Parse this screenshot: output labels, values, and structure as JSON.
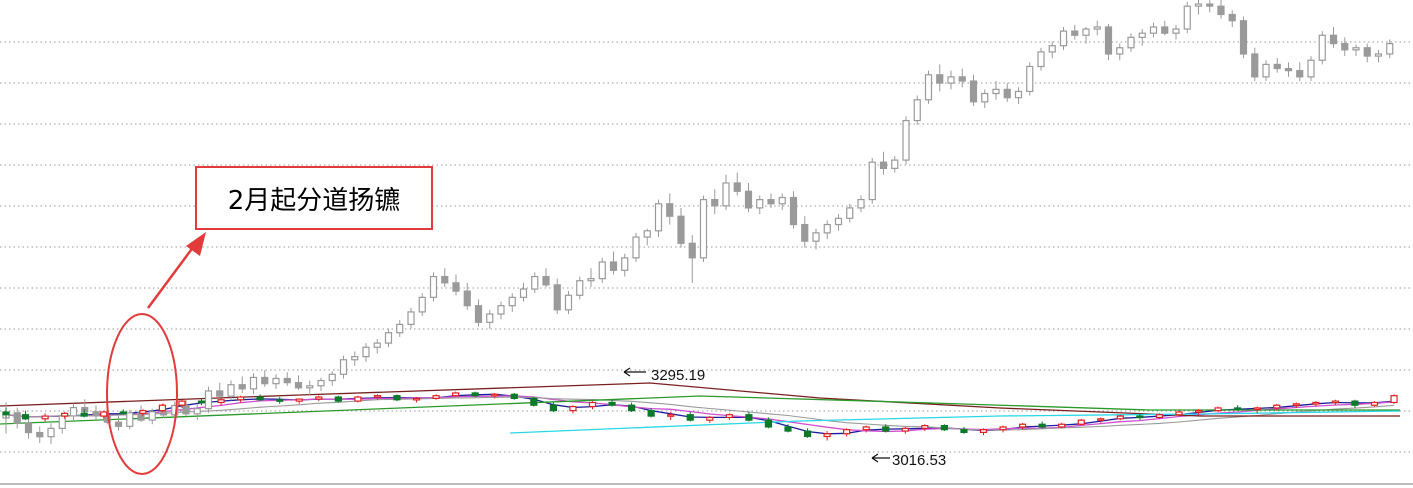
{
  "annotation": {
    "text": "2月起分道扬镳"
  },
  "chart_data": {
    "type": "candlestick",
    "grid": "dotted-horizontal",
    "colors": {
      "upper_candles": "#9a9a9a",
      "up_candle": "#e02020",
      "down_candle": "#0a7a2a",
      "ma_short": "#1c1c9c",
      "ma_mid": "#d04fd0",
      "ma_long_1": "#9a9a9a",
      "ma_long_2": "#7a1f1f",
      "ma_long_3": "#2a9a2a",
      "ma_long_4": "#29d7e6",
      "annotation": "#e23b3b"
    },
    "upper_series": [
      [
        100,
        101.5,
        98.5,
        100.5
      ],
      [
        100.5,
        101,
        99,
        99.5
      ],
      [
        99.5,
        100,
        98,
        98.6
      ],
      [
        98.6,
        99.2,
        97.6,
        98.2
      ],
      [
        98.2,
        99.5,
        97.5,
        99
      ],
      [
        99,
        100.5,
        98.5,
        100.2
      ],
      [
        100.2,
        101.4,
        99.8,
        101
      ],
      [
        101,
        101.8,
        100.4,
        100.6
      ],
      [
        100.6,
        101.2,
        99.8,
        100.2
      ],
      [
        100.2,
        101,
        99.4,
        99.6
      ],
      [
        99.6,
        100.2,
        98.8,
        99.2
      ],
      [
        99.2,
        100.8,
        98.9,
        100.5
      ],
      [
        100.5,
        101.2,
        99.6,
        99.8
      ],
      [
        99.8,
        100.9,
        99.4,
        100.6
      ],
      [
        100.6,
        101.4,
        100,
        100.3
      ],
      [
        100.3,
        101.6,
        99.9,
        101.2
      ],
      [
        101.2,
        101.8,
        100.2,
        100.4
      ],
      [
        100.4,
        101.3,
        99.8,
        100.9
      ],
      [
        100.9,
        103,
        100.5,
        102.6
      ],
      [
        102.6,
        103.4,
        101.8,
        102.1
      ],
      [
        102.1,
        103.6,
        101.7,
        103.2
      ],
      [
        103.2,
        104,
        102.4,
        102.8
      ],
      [
        102.8,
        104.3,
        102.3,
        103.9
      ],
      [
        103.9,
        104.6,
        103,
        103.3
      ],
      [
        103.3,
        104.2,
        102.8,
        103.8
      ],
      [
        103.8,
        104.4,
        103.1,
        103.4
      ],
      [
        103.4,
        104.1,
        102.7,
        102.9
      ],
      [
        102.9,
        103.6,
        102.2,
        103.1
      ],
      [
        103.1,
        103.9,
        102.6,
        103.6
      ],
      [
        103.6,
        104.5,
        103.1,
        104.2
      ],
      [
        104.2,
        106,
        103.8,
        105.6
      ],
      [
        105.6,
        106.4,
        105,
        105.9
      ],
      [
        105.9,
        107.2,
        105.4,
        106.8
      ],
      [
        106.8,
        107.6,
        106.2,
        107.2
      ],
      [
        107.2,
        108.6,
        106.8,
        108.2
      ],
      [
        108.2,
        109.4,
        107.8,
        109
      ],
      [
        109,
        110.6,
        108.6,
        110.2
      ],
      [
        110.2,
        112,
        109.8,
        111.6
      ],
      [
        111.6,
        114,
        111.2,
        113.6
      ],
      [
        113.6,
        114.4,
        112.6,
        113
      ],
      [
        113,
        113.8,
        111.8,
        112.2
      ],
      [
        112.2,
        113,
        110.4,
        110.8
      ],
      [
        110.8,
        111.4,
        108.8,
        109.2
      ],
      [
        109.2,
        110.4,
        108.6,
        110
      ],
      [
        110,
        111.2,
        109.5,
        110.8
      ],
      [
        110.8,
        112,
        110.2,
        111.6
      ],
      [
        111.6,
        113,
        111.2,
        112.4
      ],
      [
        112.4,
        114,
        112,
        113.6
      ],
      [
        113.6,
        114.4,
        112.6,
        112.8
      ],
      [
        112.8,
        113.4,
        110,
        110.4
      ],
      [
        110.4,
        112.2,
        110,
        111.8
      ],
      [
        111.8,
        113.6,
        111.4,
        113.2
      ],
      [
        113.2,
        114.4,
        112.6,
        113.4
      ],
      [
        113.4,
        115.4,
        113,
        115
      ],
      [
        115,
        116,
        113.8,
        114.2
      ],
      [
        114.2,
        115.8,
        113.6,
        115.4
      ],
      [
        115.4,
        117.8,
        115,
        117.4
      ],
      [
        117.4,
        118.2,
        116.6,
        118
      ],
      [
        118,
        121,
        117.4,
        120.6
      ],
      [
        120.6,
        121.6,
        118.6,
        119.4
      ],
      [
        119.4,
        120.2,
        116.4,
        116.8
      ],
      [
        116.8,
        117.6,
        113,
        115.4
      ],
      [
        115.4,
        121.4,
        115,
        121
      ],
      [
        121,
        122,
        119.6,
        120.4
      ],
      [
        120.4,
        123.4,
        120,
        122.6
      ],
      [
        122.6,
        123.6,
        121.4,
        121.8
      ],
      [
        121.8,
        122.6,
        119.8,
        120.2
      ],
      [
        120.2,
        121.4,
        119.6,
        121
      ],
      [
        121,
        121.6,
        120.2,
        120.6
      ],
      [
        120.6,
        121.6,
        120,
        121.2
      ],
      [
        121.2,
        121.8,
        118.2,
        118.6
      ],
      [
        118.6,
        119.4,
        116.4,
        117
      ],
      [
        117,
        118.2,
        116.2,
        117.8
      ],
      [
        117.8,
        119,
        117.2,
        118.6
      ],
      [
        118.6,
        119.6,
        118,
        119.2
      ],
      [
        119.2,
        120.6,
        118.8,
        120.2
      ],
      [
        120.2,
        121.4,
        119.8,
        121
      ],
      [
        121,
        125,
        120.6,
        124.6
      ],
      [
        124.6,
        125.6,
        123.4,
        124
      ],
      [
        124,
        125.2,
        123.6,
        124.8
      ],
      [
        124.8,
        129,
        124.4,
        128.6
      ],
      [
        128.6,
        131,
        128.2,
        130.6
      ],
      [
        130.6,
        133.4,
        130.2,
        133
      ],
      [
        133,
        134,
        131.4,
        132.2
      ],
      [
        132.2,
        133.4,
        131.6,
        132.8
      ],
      [
        132.8,
        133.6,
        131.8,
        132.4
      ],
      [
        132.4,
        133,
        130,
        130.4
      ],
      [
        130.4,
        131.6,
        129.8,
        131.2
      ],
      [
        131.2,
        132.4,
        130.6,
        131.6
      ],
      [
        131.6,
        132.2,
        130.4,
        130.8
      ],
      [
        130.8,
        131.8,
        130.2,
        131.4
      ],
      [
        131.4,
        134.2,
        131,
        133.8
      ],
      [
        133.8,
        135.6,
        133.4,
        135.2
      ],
      [
        135.2,
        136.2,
        134.6,
        135.8
      ],
      [
        135.8,
        137.6,
        135.4,
        137.2
      ],
      [
        137.2,
        137.8,
        136.4,
        136.8
      ],
      [
        136.8,
        137.6,
        136,
        137.4
      ],
      [
        137.4,
        138.2,
        136.8,
        137.6
      ],
      [
        137.6,
        137.9,
        134.4,
        135
      ],
      [
        135,
        136,
        134.4,
        135.6
      ],
      [
        135.6,
        137,
        135.2,
        136.6
      ],
      [
        136.6,
        137.4,
        135.8,
        137
      ],
      [
        137,
        138,
        136.6,
        137.6
      ],
      [
        137.6,
        138.2,
        136.8,
        137
      ],
      [
        137,
        137.8,
        136.4,
        137.4
      ],
      [
        137.4,
        140,
        137,
        139.6
      ],
      [
        139.6,
        140.2,
        138.8,
        139.8
      ],
      [
        139.8,
        140.2,
        139,
        139.6
      ],
      [
        139.6,
        140.2,
        138.4,
        138.8
      ],
      [
        138.8,
        139.2,
        137.6,
        138.2
      ],
      [
        138.2,
        138.6,
        134.6,
        135
      ],
      [
        135,
        135.6,
        132.4,
        132.8
      ],
      [
        132.8,
        134.4,
        132.4,
        134
      ],
      [
        134,
        134.6,
        133.2,
        133.6
      ],
      [
        133.6,
        134.2,
        132.8,
        133.4
      ],
      [
        133.4,
        134.2,
        132.4,
        132.8
      ],
      [
        132.8,
        134.8,
        132.4,
        134.4
      ],
      [
        134.4,
        137.2,
        134,
        136.8
      ],
      [
        136.8,
        137.6,
        135.6,
        136
      ],
      [
        136,
        136.6,
        134.8,
        135.4
      ],
      [
        135.4,
        135.9,
        134.8,
        135.6
      ],
      [
        135.6,
        136,
        134.2,
        134.8
      ],
      [
        134.8,
        135.4,
        134.2,
        135
      ],
      [
        135,
        136.4,
        134.6,
        136
      ]
    ],
    "lower_series": [
      [
        100,
        100.6,
        99.2,
        99.6
      ],
      [
        99.6,
        100.2,
        98.8,
        99
      ],
      [
        99,
        99.8,
        98.6,
        99.4
      ],
      [
        99.4,
        100,
        99,
        99.8
      ],
      [
        99.8,
        100.4,
        99.2,
        99.4
      ],
      [
        99.4,
        100.2,
        99,
        100
      ],
      [
        100,
        100.4,
        99.6,
        99.8
      ],
      [
        99.8,
        100.4,
        99.4,
        100.2
      ],
      [
        100.2,
        101.2,
        100,
        101
      ],
      [
        101,
        101.8,
        100.6,
        101.6
      ],
      [
        101.6,
        102,
        101,
        101.4
      ],
      [
        101.4,
        102,
        101,
        101.8
      ],
      [
        101.8,
        102.4,
        101.4,
        102.2
      ],
      [
        102.2,
        102.6,
        101.6,
        101.8
      ],
      [
        101.8,
        102.2,
        101.2,
        101.6
      ],
      [
        101.6,
        102,
        101.2,
        101.9
      ],
      [
        101.9,
        102.4,
        101.6,
        102.2
      ],
      [
        102.2,
        102.4,
        101.4,
        101.6
      ],
      [
        101.6,
        102.4,
        101.4,
        102.2
      ],
      [
        102.2,
        102.6,
        101.8,
        102.4
      ],
      [
        102.4,
        102.6,
        101.6,
        101.8
      ],
      [
        101.8,
        102.2,
        101.4,
        102
      ],
      [
        102,
        102.6,
        101.8,
        102.4
      ],
      [
        102.4,
        103,
        102.2,
        102.8
      ],
      [
        102.8,
        103,
        102.2,
        102.4
      ],
      [
        102.4,
        102.8,
        102,
        102.6
      ],
      [
        102.6,
        102.8,
        101.8,
        102
      ],
      [
        102,
        102.2,
        100.8,
        101
      ],
      [
        101,
        101.4,
        100,
        100.2
      ],
      [
        100.2,
        101,
        99.8,
        100.8
      ],
      [
        100.8,
        101.6,
        100.4,
        101.4
      ],
      [
        101.4,
        101.8,
        100.8,
        101
      ],
      [
        101,
        101.4,
        100,
        100.2
      ],
      [
        100.2,
        100.6,
        99.2,
        99.4
      ],
      [
        99.4,
        100,
        98.8,
        99.6
      ],
      [
        99.6,
        100,
        98.6,
        98.8
      ],
      [
        98.8,
        99.4,
        98.4,
        99.2
      ],
      [
        99.2,
        99.8,
        98.8,
        99.6
      ],
      [
        99.6,
        100,
        98.6,
        98.8
      ],
      [
        98.8,
        99.2,
        97.6,
        97.8
      ],
      [
        97.8,
        98.2,
        97,
        97.2
      ],
      [
        97.2,
        97.6,
        96.2,
        96.4
      ],
      [
        96.4,
        97.2,
        95.8,
        96.8
      ],
      [
        96.8,
        97.6,
        96.4,
        97.4
      ],
      [
        97.4,
        98,
        97,
        97.8
      ],
      [
        97.8,
        98.2,
        97,
        97.2
      ],
      [
        97.2,
        97.8,
        96.8,
        97.6
      ],
      [
        97.6,
        98.2,
        97.2,
        98
      ],
      [
        98,
        98.2,
        97.2,
        97.4
      ],
      [
        97.4,
        97.8,
        96.8,
        97
      ],
      [
        97,
        97.6,
        96.6,
        97.4
      ],
      [
        97.4,
        98,
        97,
        97.8
      ],
      [
        97.8,
        98.4,
        97.4,
        98.2
      ],
      [
        98.2,
        98.6,
        97.6,
        97.8
      ],
      [
        97.8,
        98.4,
        97.6,
        98.2
      ],
      [
        98.2,
        99,
        98,
        98.8
      ],
      [
        98.8,
        99.2,
        98.4,
        99
      ],
      [
        99,
        99.6,
        98.8,
        99.4
      ],
      [
        99.4,
        99.8,
        98.8,
        99.2
      ],
      [
        99.2,
        99.8,
        99,
        99.6
      ],
      [
        99.6,
        100.2,
        99.4,
        100
      ],
      [
        100,
        100.4,
        99.6,
        100.2
      ],
      [
        100.2,
        100.8,
        100,
        100.6
      ],
      [
        100.6,
        101,
        100.2,
        100.4
      ],
      [
        100.4,
        100.8,
        99.8,
        100.6
      ],
      [
        100.6,
        101.2,
        100.2,
        101
      ],
      [
        101,
        101.4,
        100.6,
        101.2
      ],
      [
        101.2,
        101.6,
        100.8,
        101.4
      ],
      [
        101.4,
        101.8,
        101,
        101.6
      ],
      [
        101.6,
        101.8,
        100.6,
        101
      ],
      [
        101,
        101.6,
        100.8,
        101.4
      ],
      [
        101.4,
        102.6,
        101.2,
        102.4
      ]
    ],
    "price_labels": [
      {
        "text": "3295.19",
        "value": 3295.19
      },
      {
        "text": "3016.53",
        "value": 3016.53
      }
    ]
  }
}
